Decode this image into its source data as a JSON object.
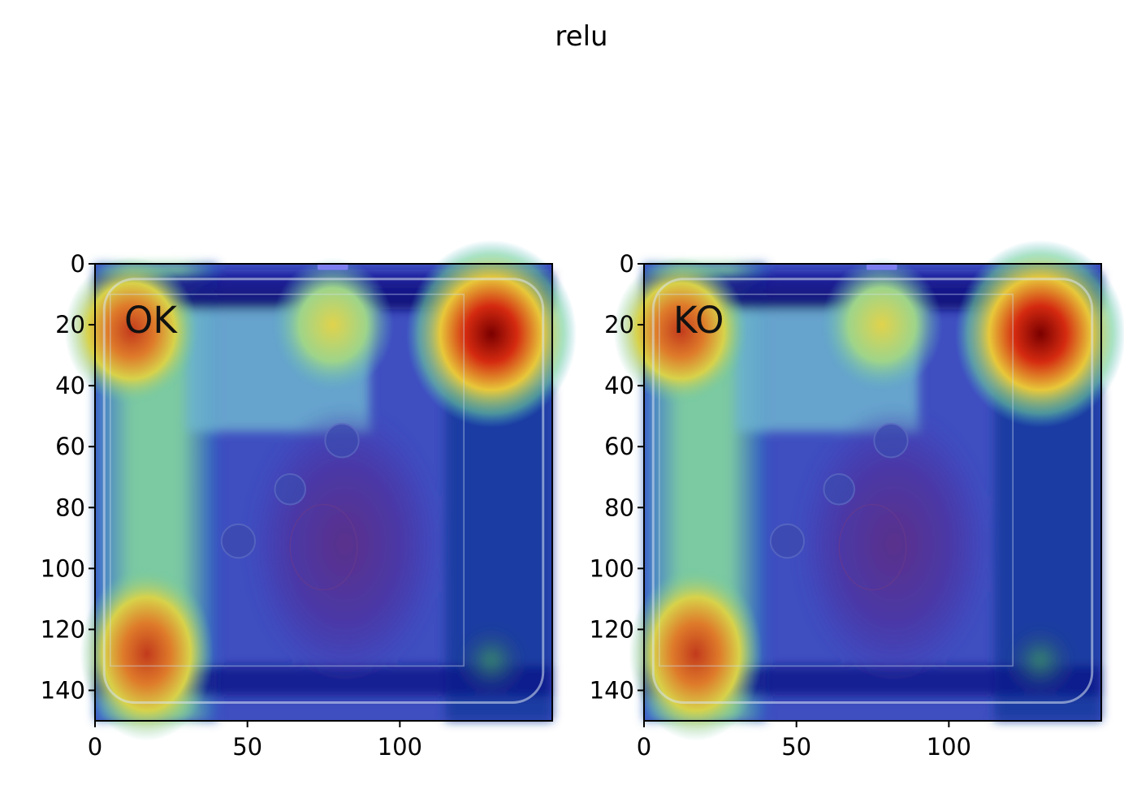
{
  "figure": {
    "suptitle": "relu"
  },
  "chart_data": [
    {
      "type": "heatmap",
      "title": "",
      "annotation": "OK",
      "xlabel": "",
      "ylabel": "",
      "xlim": [
        0,
        150
      ],
      "ylim": [
        150,
        0
      ],
      "x_ticks": [
        0,
        50,
        100
      ],
      "y_ticks": [
        0,
        20,
        40,
        60,
        80,
        100,
        120,
        140
      ],
      "colormap": "jet",
      "heat_spots": [
        {
          "x": 130,
          "y": 23,
          "intensity": 1.0
        },
        {
          "x": 12,
          "y": 22,
          "intensity": 0.82
        },
        {
          "x": 17,
          "y": 128,
          "intensity": 0.78
        },
        {
          "x": 78,
          "y": 20,
          "intensity": 0.5
        }
      ]
    },
    {
      "type": "heatmap",
      "title": "",
      "annotation": "KO",
      "xlabel": "",
      "ylabel": "",
      "xlim": [
        0,
        150
      ],
      "ylim": [
        150,
        0
      ],
      "x_ticks": [
        0,
        50,
        100
      ],
      "y_ticks": [
        0,
        20,
        40,
        60,
        80,
        100,
        120,
        140
      ],
      "colormap": "jet",
      "heat_spots": [
        {
          "x": 130,
          "y": 23,
          "intensity": 1.0
        },
        {
          "x": 12,
          "y": 22,
          "intensity": 0.82
        },
        {
          "x": 17,
          "y": 128,
          "intensity": 0.78
        },
        {
          "x": 78,
          "y": 20,
          "intensity": 0.5
        }
      ]
    }
  ]
}
